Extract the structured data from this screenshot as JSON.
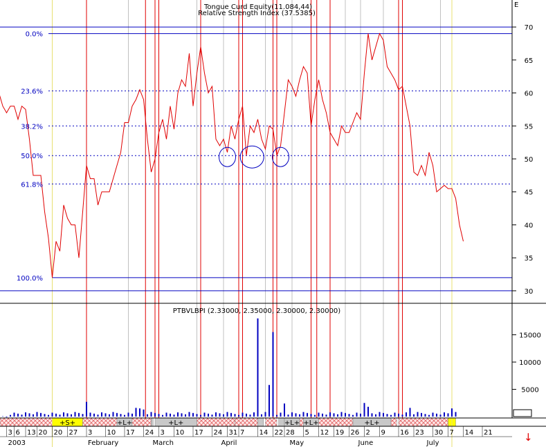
{
  "chart_data": [
    {
      "type": "line",
      "title": "Tongue Curd Equity(11.084,44)",
      "subtitle": "Relative Strength Index (37.5385)",
      "series": [
        {
          "name": "RSI",
          "color": "#e00000",
          "points": [
            [
              -3,
              60
            ],
            [
              -2,
              58
            ],
            [
              -1,
              57
            ],
            [
              0,
              58
            ],
            [
              1,
              58
            ],
            [
              2,
              56
            ],
            [
              3,
              58
            ],
            [
              4,
              57.5
            ],
            [
              5,
              53
            ],
            [
              6,
              47.5
            ],
            [
              7,
              47.5
            ],
            [
              8,
              47.5
            ],
            [
              9,
              42
            ],
            [
              10,
              38
            ],
            [
              11,
              32
            ],
            [
              12,
              37.5
            ],
            [
              13,
              36
            ],
            [
              14,
              43
            ],
            [
              15,
              41
            ],
            [
              16,
              40
            ],
            [
              17,
              40
            ],
            [
              18,
              35
            ],
            [
              19,
              42
            ],
            [
              20,
              49
            ],
            [
              21,
              47
            ],
            [
              22,
              47
            ],
            [
              23,
              43
            ],
            [
              24,
              45
            ],
            [
              25,
              45
            ],
            [
              26,
              45
            ],
            [
              27,
              47
            ],
            [
              28,
              49
            ],
            [
              29,
              51
            ],
            [
              30,
              55.5
            ],
            [
              31,
              55.5
            ],
            [
              32,
              58
            ],
            [
              33,
              59
            ],
            [
              34,
              60.5
            ],
            [
              35,
              59
            ],
            [
              36,
              53
            ],
            [
              37,
              48
            ],
            [
              38,
              50
            ],
            [
              39,
              54
            ],
            [
              40,
              56
            ],
            [
              41,
              53
            ],
            [
              42,
              58
            ],
            [
              43,
              54.5
            ],
            [
              44,
              60
            ],
            [
              45,
              62
            ],
            [
              46,
              61
            ],
            [
              47,
              66
            ],
            [
              48,
              58
            ],
            [
              49,
              63
            ],
            [
              50,
              67
            ],
            [
              51,
              63
            ],
            [
              52,
              60
            ],
            [
              53,
              61
            ],
            [
              54,
              53
            ],
            [
              55,
              52
            ],
            [
              56,
              53
            ],
            [
              57,
              51
            ],
            [
              58,
              55
            ],
            [
              59,
              53
            ],
            [
              60,
              56
            ],
            [
              61,
              58
            ],
            [
              62,
              50.5
            ],
            [
              63,
              55
            ],
            [
              64,
              54
            ],
            [
              65,
              56
            ],
            [
              66,
              53
            ],
            [
              67,
              51.5
            ],
            [
              68,
              55
            ],
            [
              69,
              54.5
            ],
            [
              70,
              50.5
            ],
            [
              71,
              52
            ],
            [
              72,
              57
            ],
            [
              73,
              62
            ],
            [
              74,
              61
            ],
            [
              75,
              59.5
            ],
            [
              76,
              62
            ],
            [
              77,
              64
            ],
            [
              78,
              63
            ],
            [
              79,
              55
            ],
            [
              80,
              59
            ],
            [
              81,
              62
            ],
            [
              82,
              59
            ],
            [
              83,
              57
            ],
            [
              84,
              54
            ],
            [
              85,
              53
            ],
            [
              86,
              52
            ],
            [
              87,
              55
            ],
            [
              88,
              54
            ],
            [
              89,
              54
            ],
            [
              90,
              55.5
            ],
            [
              91,
              57
            ],
            [
              92,
              56
            ],
            [
              93,
              63
            ],
            [
              94,
              69
            ],
            [
              95,
              65
            ],
            [
              96,
              67
            ],
            [
              97,
              69
            ],
            [
              98,
              68
            ],
            [
              99,
              64
            ],
            [
              100,
              63
            ],
            [
              101,
              62
            ],
            [
              102,
              60.5
            ],
            [
              103,
              61
            ],
            [
              104,
              58
            ],
            [
              105,
              55
            ],
            [
              106,
              48
            ],
            [
              107,
              47.5
            ],
            [
              108,
              49
            ],
            [
              109,
              47.5
            ],
            [
              110,
              51
            ],
            [
              111,
              49
            ],
            [
              112,
              45
            ],
            [
              113,
              45.5
            ],
            [
              114,
              46
            ],
            [
              115,
              45.5
            ],
            [
              116,
              45.5
            ],
            [
              117,
              44
            ],
            [
              118,
              40
            ],
            [
              119,
              37.5
            ]
          ]
        }
      ],
      "ylim": [
        28,
        72
      ],
      "yticks": [
        30,
        35,
        40,
        45,
        50,
        55,
        60,
        65,
        70
      ],
      "fibonacci_levels": [
        {
          "label": "0.0%",
          "value": 69,
          "style": "solid"
        },
        {
          "label": "23.6%",
          "value": 60.3,
          "style": "dashed"
        },
        {
          "label": "38.2%",
          "value": 55,
          "style": "dashed"
        },
        {
          "label": "50.0%",
          "value": 50.5,
          "style": "dashed"
        },
        {
          "label": "61.8%",
          "value": 46.2,
          "style": "dashed"
        },
        {
          "label": "100.0%",
          "value": 32,
          "style": "solid"
        }
      ],
      "extra_hlines": [
        70,
        30
      ],
      "circles_at": [
        57,
        63.5,
        71
      ],
      "grid": false
    },
    {
      "type": "bar",
      "title": "PTBVLBPI (2.33000, 2.35000, 2.30000, 2.30000)",
      "series": [
        {
          "name": "PTBVLBPI",
          "color": "#0000c0",
          "spikes": [
            {
              "x": 20,
              "value": 2700
            },
            {
              "x": 33,
              "value": 1600
            },
            {
              "x": 34,
              "value": 1500
            },
            {
              "x": 35,
              "value": 1300
            },
            {
              "x": 65,
              "value": 18000
            },
            {
              "x": 68,
              "value": 5800
            },
            {
              "x": 69,
              "value": 15500
            },
            {
              "x": 72,
              "value": 2400
            },
            {
              "x": 93,
              "value": 2500
            },
            {
              "x": 94,
              "value": 1800
            },
            {
              "x": 105,
              "value": 1600
            },
            {
              "x": 116,
              "value": 1500
            }
          ],
          "base_value": 600
        }
      ],
      "ylim": [
        0,
        19000
      ],
      "yticks": [
        5000,
        10000,
        15000
      ]
    }
  ],
  "time_axis": {
    "day_labels": [
      {
        "x": -1,
        "text": "3"
      },
      {
        "x": 1,
        "text": "6"
      },
      {
        "x": 4,
        "text": "13"
      },
      {
        "x": 7,
        "text": "20"
      },
      {
        "x": 11,
        "text": "20"
      },
      {
        "x": 15,
        "text": "27"
      },
      {
        "x": 20,
        "text": "3"
      },
      {
        "x": 25,
        "text": "10"
      },
      {
        "x": 30,
        "text": "17"
      },
      {
        "x": 35,
        "text": "24"
      },
      {
        "x": 39,
        "text": "3"
      },
      {
        "x": 43,
        "text": "10"
      },
      {
        "x": 48,
        "text": "17"
      },
      {
        "x": 53,
        "text": "24"
      },
      {
        "x": 57,
        "text": "31"
      },
      {
        "x": 60,
        "text": "7"
      },
      {
        "x": 65,
        "text": "14"
      },
      {
        "x": 69,
        "text": "22"
      },
      {
        "x": 72,
        "text": "28"
      },
      {
        "x": 77,
        "text": "5"
      },
      {
        "x": 81,
        "text": "12"
      },
      {
        "x": 85,
        "text": "19"
      },
      {
        "x": 89,
        "text": "26"
      },
      {
        "x": 93,
        "text": "2"
      },
      {
        "x": 97,
        "text": "9"
      },
      {
        "x": 102,
        "text": "16"
      },
      {
        "x": 106,
        "text": "23"
      },
      {
        "x": 111,
        "text": "30"
      },
      {
        "x": 115,
        "text": "7"
      },
      {
        "x": 119,
        "text": "14"
      },
      {
        "x": 124,
        "text": "21"
      }
    ],
    "month_labels": [
      {
        "x": -1,
        "text": "2003"
      },
      {
        "x": 20,
        "text": "February"
      },
      {
        "x": 37,
        "text": "March"
      },
      {
        "x": 55,
        "text": "April"
      },
      {
        "x": 73,
        "text": "May"
      },
      {
        "x": 91,
        "text": "June"
      },
      {
        "x": 109,
        "text": "July"
      }
    ],
    "signals": [
      {
        "from": -5,
        "to": 11,
        "type": "hatch",
        "label": ""
      },
      {
        "from": 11,
        "to": 19,
        "type": "yellow",
        "label": "+S+"
      },
      {
        "from": 19,
        "to": 28,
        "type": "hatch",
        "label": ""
      },
      {
        "from": 28,
        "to": 32,
        "type": "gray",
        "label": "+L+"
      },
      {
        "from": 32,
        "to": 37,
        "type": "hatch",
        "label": ""
      },
      {
        "from": 37,
        "to": 37.5,
        "type": "gray",
        "label": ""
      },
      {
        "from": 38,
        "to": 49,
        "type": "gray",
        "label": "+L+"
      },
      {
        "from": 49,
        "to": 59,
        "type": "hatch",
        "label": ""
      },
      {
        "from": 59,
        "to": 65,
        "type": "hatch",
        "label": ""
      },
      {
        "from": 65,
        "to": 66.5,
        "type": "gray",
        "label": ""
      },
      {
        "from": 67,
        "to": 70,
        "type": "hatch",
        "label": ""
      },
      {
        "from": 70.5,
        "to": 72,
        "type": "gray",
        "label": ""
      },
      {
        "from": 72,
        "to": 76,
        "type": "gray",
        "label": "+L+"
      },
      {
        "from": 76,
        "to": 77,
        "type": "hatch",
        "label": ""
      },
      {
        "from": 77,
        "to": 81,
        "type": "gray",
        "label": "+L+"
      },
      {
        "from": 81,
        "to": 90,
        "type": "hatch",
        "label": ""
      },
      {
        "from": 90,
        "to": 100,
        "type": "gray",
        "label": "+L+"
      },
      {
        "from": 100,
        "to": 101.5,
        "type": "hatch",
        "label": ""
      },
      {
        "from": 102,
        "to": 115,
        "type": "hatch",
        "label": ""
      },
      {
        "from": 115,
        "to": 117,
        "type": "yellow",
        "label": ""
      }
    ],
    "red_vlines": [
      20,
      35.5,
      38,
      39,
      50,
      60,
      61,
      69,
      70,
      79,
      80.5,
      84,
      102,
      103
    ],
    "gray_vlines": [
      31,
      49,
      56,
      67,
      74,
      88,
      92,
      98,
      113
    ],
    "yellow_vlines": [
      11,
      116
    ]
  },
  "down_arrow": "↓"
}
